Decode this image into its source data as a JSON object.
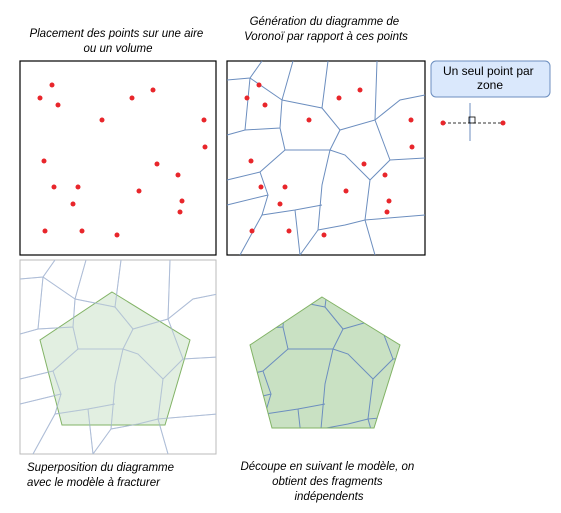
{
  "panels": [
    {
      "caption": [
        "Placement des points sur une aire",
        "ou un volume"
      ]
    },
    {
      "caption": [
        "Génération du diagramme de",
        "Voronoï par rapport à ces points"
      ]
    },
    {
      "caption": [
        "Superposition du diagramme",
        "avec le modèle à fracturer"
      ]
    },
    {
      "caption": [
        "Découpe en suivant le modèle, on",
        "obtient des fragments",
        "indépendents"
      ]
    }
  ],
  "note": {
    "label": [
      "Un seul point par",
      "zone"
    ]
  }
}
